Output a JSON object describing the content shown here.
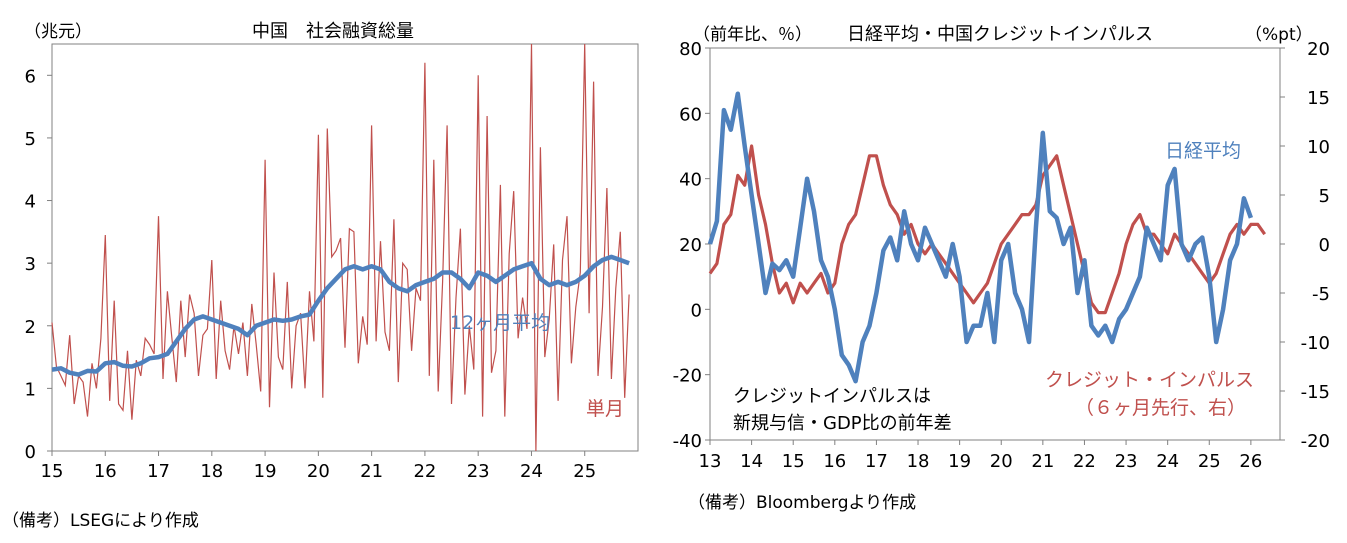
{
  "chart_data": [
    {
      "type": "line",
      "title": "中国　社会融資総量",
      "unit_label": "（兆元）",
      "xlim": [
        15,
        26
      ],
      "ylim": [
        0,
        6.5
      ],
      "y_ticks": [
        0,
        1,
        2,
        3,
        4,
        5,
        6
      ],
      "x_tick_labels": [
        "15",
        "16",
        "17",
        "18",
        "19",
        "20",
        "21",
        "22",
        "23",
        "24",
        "25"
      ],
      "grid": false,
      "source": "（備考）LSEGにより作成",
      "series": [
        {
          "name": "単月",
          "color": "#c0504d",
          "x": [
            15.0,
            15.083,
            15.167,
            15.25,
            15.333,
            15.417,
            15.5,
            15.583,
            15.667,
            15.75,
            15.833,
            15.917,
            16.0,
            16.083,
            16.167,
            16.25,
            16.333,
            16.417,
            16.5,
            16.583,
            16.667,
            16.75,
            16.833,
            16.917,
            17.0,
            17.083,
            17.167,
            17.25,
            17.333,
            17.417,
            17.5,
            17.583,
            17.667,
            17.75,
            17.833,
            17.917,
            18.0,
            18.083,
            18.167,
            18.25,
            18.333,
            18.417,
            18.5,
            18.583,
            18.667,
            18.75,
            18.833,
            18.917,
            19.0,
            19.083,
            19.167,
            19.25,
            19.333,
            19.417,
            19.5,
            19.583,
            19.667,
            19.75,
            19.833,
            19.917,
            20.0,
            20.083,
            20.167,
            20.25,
            20.333,
            20.417,
            20.5,
            20.583,
            20.667,
            20.75,
            20.833,
            20.917,
            21.0,
            21.083,
            21.167,
            21.25,
            21.333,
            21.417,
            21.5,
            21.583,
            21.667,
            21.75,
            21.833,
            21.917,
            22.0,
            22.083,
            22.167,
            22.25,
            22.333,
            22.417,
            22.5,
            22.583,
            22.667,
            22.75,
            22.833,
            22.917,
            23.0,
            23.083,
            23.167,
            23.25,
            23.333,
            23.417,
            23.5,
            23.583,
            23.667,
            23.75,
            23.833,
            23.917,
            24.0,
            24.083,
            24.167,
            24.25,
            24.333,
            24.417,
            24.5,
            24.583,
            24.667,
            24.75,
            24.833,
            24.917,
            25.0,
            25.083,
            25.167,
            25.25,
            25.333,
            25.417,
            25.5,
            25.583,
            25.667,
            25.75,
            25.833
          ],
          "values": [
            2.05,
            1.35,
            1.2,
            1.05,
            1.85,
            0.75,
            1.2,
            1.1,
            0.55,
            1.4,
            1.0,
            1.8,
            3.45,
            0.8,
            2.4,
            0.75,
            0.65,
            1.6,
            0.5,
            1.45,
            1.2,
            1.8,
            1.7,
            1.55,
            3.75,
            1.15,
            2.55,
            1.8,
            1.1,
            2.4,
            1.5,
            2.5,
            2.2,
            1.2,
            1.85,
            1.95,
            3.05,
            1.15,
            2.4,
            1.6,
            1.3,
            2.0,
            1.55,
            2.05,
            1.2,
            2.35,
            1.7,
            0.95,
            4.65,
            0.7,
            2.85,
            1.5,
            1.3,
            2.7,
            1.0,
            2.0,
            2.2,
            1.0,
            2.55,
            1.75,
            5.05,
            0.85,
            5.15,
            3.1,
            3.2,
            3.4,
            1.65,
            3.55,
            3.5,
            1.4,
            2.15,
            1.7,
            5.2,
            1.75,
            3.35,
            1.9,
            1.6,
            3.7,
            1.1,
            3.0,
            2.9,
            1.6,
            2.6,
            2.4,
            6.2,
            1.2,
            4.65,
            0.95,
            2.7,
            5.2,
            0.75,
            2.45,
            3.55,
            0.9,
            2.0,
            1.3,
            6.0,
            0.55,
            5.35,
            1.25,
            1.6,
            4.25,
            0.55,
            3.15,
            4.15,
            1.8,
            2.45,
            1.95,
            6.5,
            0.0,
            4.85,
            1.5,
            2.1,
            3.3,
            0.8,
            3.05,
            3.75,
            1.4,
            2.3,
            2.85,
            7.06,
            2.2,
            5.9,
            1.2,
            2.3,
            4.2,
            1.15,
            2.6,
            3.5,
            0.85,
            2.5
          ]
        },
        {
          "name": "12ヶ月平均",
          "color": "#4f81bd",
          "x": [
            15.0,
            15.167,
            15.333,
            15.5,
            15.667,
            15.833,
            16.0,
            16.167,
            16.333,
            16.5,
            16.667,
            16.833,
            17.0,
            17.167,
            17.333,
            17.5,
            17.667,
            17.833,
            18.0,
            18.167,
            18.333,
            18.5,
            18.667,
            18.833,
            19.0,
            19.167,
            19.333,
            19.5,
            19.667,
            19.833,
            20.0,
            20.167,
            20.333,
            20.5,
            20.667,
            20.833,
            21.0,
            21.167,
            21.333,
            21.5,
            21.667,
            21.833,
            22.0,
            22.167,
            22.333,
            22.5,
            22.667,
            22.833,
            23.0,
            23.167,
            23.333,
            23.5,
            23.667,
            23.833,
            24.0,
            24.167,
            24.333,
            24.5,
            24.667,
            24.833,
            25.0,
            25.167,
            25.333,
            25.5,
            25.667,
            25.833
          ],
          "values": [
            1.3,
            1.32,
            1.25,
            1.22,
            1.28,
            1.27,
            1.4,
            1.42,
            1.36,
            1.35,
            1.4,
            1.48,
            1.5,
            1.55,
            1.75,
            1.95,
            2.1,
            2.15,
            2.1,
            2.05,
            2.0,
            1.95,
            1.85,
            2.0,
            2.05,
            2.1,
            2.08,
            2.1,
            2.15,
            2.18,
            2.4,
            2.6,
            2.75,
            2.9,
            2.95,
            2.9,
            2.95,
            2.9,
            2.7,
            2.6,
            2.55,
            2.65,
            2.7,
            2.75,
            2.85,
            2.85,
            2.75,
            2.6,
            2.85,
            2.8,
            2.7,
            2.8,
            2.9,
            2.95,
            3.0,
            2.75,
            2.65,
            2.7,
            2.65,
            2.7,
            2.8,
            2.95,
            3.05,
            3.1,
            3.05,
            3.0
          ]
        }
      ],
      "annotations": [
        "12ヶ月平均",
        "単月"
      ]
    },
    {
      "type": "line",
      "title": "日経平均・中国クレジットインパルス",
      "y1_label": "（前年比、％）",
      "y2_label": "（%pt）",
      "xlim": [
        13,
        26.7
      ],
      "ylim": [
        -40,
        80
      ],
      "y2lim": [
        -20,
        20
      ],
      "y_ticks": [
        -40,
        -20,
        0,
        20,
        40,
        60,
        80
      ],
      "y2_ticks": [
        -20,
        -15,
        -10,
        -5,
        0,
        5,
        10,
        15,
        20
      ],
      "x_tick_labels": [
        "13",
        "14",
        "15",
        "16",
        "17",
        "18",
        "19",
        "20",
        "21",
        "22",
        "23",
        "24",
        "25",
        "26"
      ],
      "grid": false,
      "source": "（備考）Bloombergより作成",
      "series": [
        {
          "name": "日経平均",
          "axis": "left",
          "color": "#4f81bd",
          "x": [
            13.0,
            13.167,
            13.333,
            13.5,
            13.667,
            13.833,
            14.0,
            14.167,
            14.333,
            14.5,
            14.667,
            14.833,
            15.0,
            15.167,
            15.333,
            15.5,
            15.667,
            15.833,
            16.0,
            16.167,
            16.333,
            16.5,
            16.667,
            16.833,
            17.0,
            17.167,
            17.333,
            17.5,
            17.667,
            17.833,
            18.0,
            18.167,
            18.333,
            18.5,
            18.667,
            18.833,
            19.0,
            19.167,
            19.333,
            19.5,
            19.667,
            19.833,
            20.0,
            20.167,
            20.333,
            20.5,
            20.667,
            20.833,
            21.0,
            21.167,
            21.333,
            21.5,
            21.667,
            21.833,
            22.0,
            22.167,
            22.333,
            22.5,
            22.667,
            22.833,
            23.0,
            23.167,
            23.333,
            23.5,
            23.667,
            23.833,
            24.0,
            24.167,
            24.333,
            24.5,
            24.667,
            24.833,
            25.0,
            25.167,
            25.333,
            25.5,
            25.667,
            25.833,
            26.0
          ],
          "values": [
            20,
            27,
            61,
            55,
            66,
            50,
            35,
            20,
            5,
            14,
            12,
            15,
            10,
            25,
            40,
            30,
            15,
            10,
            0,
            -14,
            -17,
            -22,
            -10,
            -5,
            5,
            18,
            22,
            15,
            30,
            20,
            15,
            25,
            20,
            15,
            10,
            20,
            10,
            -10,
            -5,
            -5,
            5,
            -10,
            15,
            20,
            5,
            0,
            -10,
            25,
            54,
            30,
            28,
            20,
            25,
            5,
            15,
            -5,
            -8,
            -5,
            -10,
            -3,
            0,
            5,
            10,
            25,
            20,
            15,
            38,
            43,
            20,
            15,
            20,
            22,
            10,
            -10,
            0,
            15,
            20,
            34,
            28
          ]
        },
        {
          "name": "クレジット・インパルス",
          "axis": "right",
          "color": "#c0504d",
          "x": [
            13.0,
            13.167,
            13.333,
            13.5,
            13.667,
            13.833,
            14.0,
            14.167,
            14.333,
            14.5,
            14.667,
            14.833,
            15.0,
            15.167,
            15.333,
            15.5,
            15.667,
            15.833,
            16.0,
            16.167,
            16.333,
            16.5,
            16.667,
            16.833,
            17.0,
            17.167,
            17.333,
            17.5,
            17.667,
            17.833,
            18.0,
            18.167,
            18.333,
            18.5,
            18.667,
            18.833,
            19.0,
            19.167,
            19.333,
            19.5,
            19.667,
            19.833,
            20.0,
            20.167,
            20.333,
            20.5,
            20.667,
            20.833,
            21.0,
            21.167,
            21.333,
            21.5,
            21.667,
            21.833,
            22.0,
            22.167,
            22.333,
            22.5,
            22.667,
            22.833,
            23.0,
            23.167,
            23.333,
            23.5,
            23.667,
            23.833,
            24.0,
            24.167,
            24.333,
            24.5,
            24.667,
            24.833,
            25.0,
            25.167,
            25.333,
            25.5,
            25.667,
            25.833,
            26.0,
            26.167,
            26.333
          ],
          "values": [
            -3,
            -2,
            2,
            3,
            7,
            6,
            10,
            5,
            2,
            -2,
            -5,
            -4,
            -6,
            -4,
            -5,
            -4,
            -3,
            -5,
            -4,
            0,
            2,
            3,
            6,
            9,
            9,
            6,
            4,
            3,
            1,
            2,
            0,
            -1,
            0,
            -1,
            -2,
            -3,
            -4,
            -5,
            -6,
            -5,
            -4,
            -2,
            0,
            1,
            2,
            3,
            3,
            4,
            7,
            8,
            9,
            6,
            3,
            0,
            -3,
            -6,
            -7,
            -7,
            -5,
            -3,
            0,
            2,
            3,
            1,
            1,
            0,
            -1,
            1,
            0,
            -1,
            -2,
            -3,
            -4,
            -3,
            -1,
            1,
            2,
            1,
            2,
            2,
            1
          ]
        }
      ],
      "annotations": [
        "日経平均",
        "クレジット・インパルス",
        "（６ヶ月先行、右）",
        "クレジットインパルスは",
        "新規与信・GDP比の前年差"
      ]
    }
  ]
}
